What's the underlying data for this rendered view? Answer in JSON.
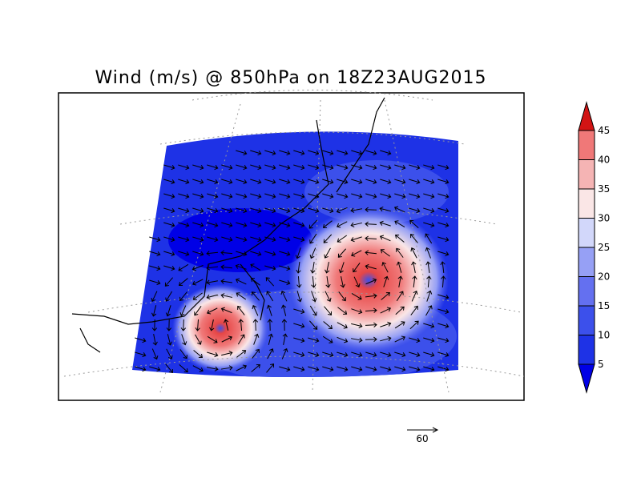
{
  "title": "Wind (m/s) @ 850hPa on 18Z23AUG2015",
  "colorbar": {
    "levels": [
      5,
      10,
      15,
      20,
      25,
      30,
      35,
      40,
      45
    ],
    "colors": [
      "#0000e6",
      "#1e32e6",
      "#3c50eb",
      "#6470f0",
      "#96a0f5",
      "#d2d7fa",
      "#fae6e6",
      "#f5b4b4",
      "#f07878",
      "#e64646",
      "#d21414"
    ]
  },
  "reference_vector": {
    "label": "60"
  }
}
